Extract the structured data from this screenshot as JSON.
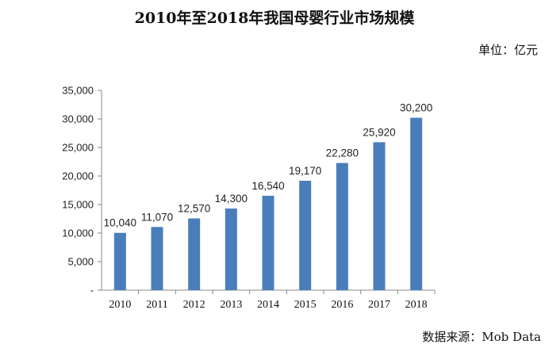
{
  "chart_data": {
    "type": "bar",
    "title": "2010年至2018年我国母婴行业市场规模",
    "unit": "单位：亿元",
    "source": "数据来源：Mob Data",
    "categories": [
      "2010",
      "2011",
      "2012",
      "2013",
      "2014",
      "2015",
      "2016",
      "2017",
      "2018"
    ],
    "values": [
      10040,
      11070,
      12570,
      14300,
      16540,
      19170,
      22280,
      25920,
      30200
    ],
    "value_labels": [
      "10,040",
      "11,070",
      "12,570",
      "14,300",
      "16,540",
      "19,170",
      "22,280",
      "25,920",
      "30,200"
    ],
    "y_ticks": [
      0,
      5000,
      10000,
      15000,
      20000,
      25000,
      30000,
      35000
    ],
    "y_tick_labels": [
      "-",
      "5,000",
      "10,000",
      "15,000",
      "20,000",
      "25,000",
      "30,000",
      "35,000"
    ],
    "ylim": [
      0,
      35000
    ],
    "grid": false,
    "colors": {
      "bar": "#4a7ebb",
      "axis": "#888888"
    }
  }
}
